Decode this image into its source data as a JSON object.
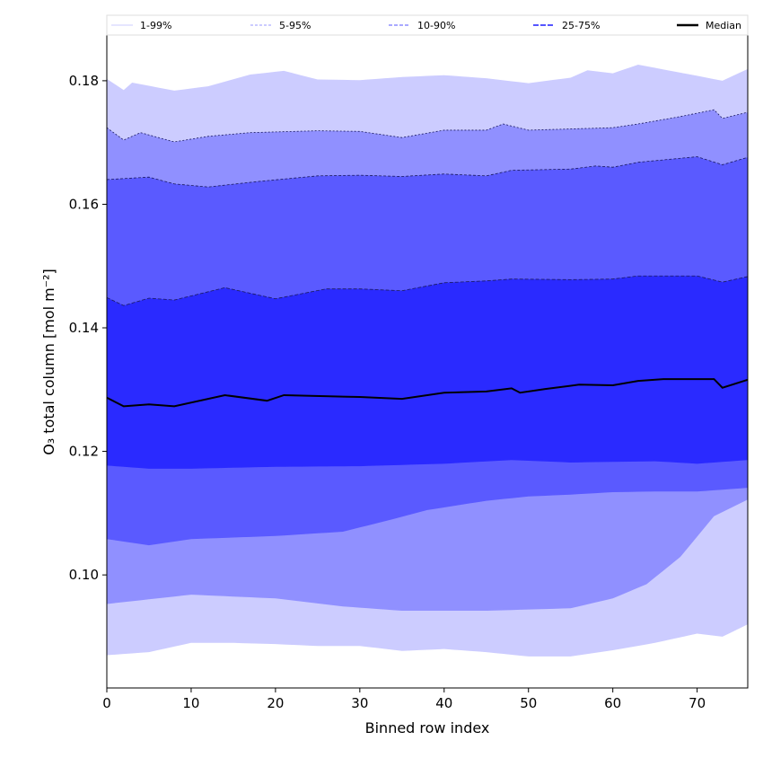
{
  "chart_data": {
    "type": "area",
    "title": "",
    "xlabel": "Binned row index",
    "ylabel": "O₃ total column [mol m⁻²]",
    "xlim": [
      0,
      76
    ],
    "ylim": [
      0.0817,
      0.1874
    ],
    "xticks": [
      0,
      10,
      20,
      30,
      40,
      50,
      60,
      70
    ],
    "xtick_labels": [
      "0",
      "10",
      "20",
      "30",
      "40",
      "50",
      "60",
      "70"
    ],
    "yticks": [
      0.1,
      0.12,
      0.14,
      0.16,
      0.18
    ],
    "ytick_labels": [
      "0.10",
      "0.12",
      "0.14",
      "0.16",
      "0.18"
    ],
    "grid": false,
    "legend_position": "top, above plot",
    "legend": [
      "1-99%",
      "5-95%",
      "10-90%",
      "25-75%",
      "Median"
    ],
    "bands": [
      {
        "name": "1-99%",
        "lower": "p1",
        "upper": "p99",
        "color": "#ccccff"
      },
      {
        "name": "5-95%",
        "lower": "p5",
        "upper": "p95",
        "color": "#9090ff"
      },
      {
        "name": "10-90%",
        "lower": "p10",
        "upper": "p90",
        "color": "#5a5aff"
      },
      {
        "name": "25-75%",
        "lower": "p25",
        "upper": "p75",
        "color": "#2a2aff"
      }
    ],
    "median_color": "#000000",
    "series": {
      "p1": {
        "x": [
          0,
          5,
          10,
          15,
          20,
          25,
          30,
          35,
          40,
          45,
          50,
          55,
          60,
          65,
          70,
          73,
          76
        ],
        "y": [
          0.087,
          0.0875,
          0.089,
          0.089,
          0.0888,
          0.0885,
          0.0885,
          0.0877,
          0.088,
          0.0875,
          0.0868,
          0.0868,
          0.0878,
          0.089,
          0.0905,
          0.09,
          0.092
        ]
      },
      "p5": {
        "x": [
          0,
          10,
          20,
          28,
          35,
          45,
          55,
          60,
          64,
          68,
          72,
          76
        ],
        "y": [
          0.0953,
          0.0968,
          0.0962,
          0.0949,
          0.0942,
          0.0942,
          0.0946,
          0.0962,
          0.0985,
          0.1029,
          0.1095,
          0.1122
        ]
      },
      "p10": {
        "x": [
          0,
          5,
          10,
          20,
          28,
          33,
          38,
          45,
          50,
          55,
          60,
          65,
          70,
          76
        ],
        "y": [
          0.1058,
          0.1048,
          0.1058,
          0.1063,
          0.107,
          0.1087,
          0.1105,
          0.112,
          0.1127,
          0.113,
          0.1134,
          0.1135,
          0.1135,
          0.1141
        ]
      },
      "p25": {
        "x": [
          0,
          5,
          10,
          20,
          30,
          40,
          48,
          55,
          65,
          70,
          76
        ],
        "y": [
          0.1177,
          0.1172,
          0.1172,
          0.1175,
          0.1176,
          0.118,
          0.1186,
          0.1182,
          0.1184,
          0.118,
          0.1186
        ]
      },
      "median": {
        "x": [
          0,
          2,
          5,
          8,
          14,
          19,
          21,
          30,
          35,
          40,
          45,
          48,
          49,
          52,
          56,
          60,
          63,
          66,
          72,
          73,
          76
        ],
        "y": [
          0.1287,
          0.1273,
          0.1276,
          0.1273,
          0.1291,
          0.1282,
          0.1291,
          0.1288,
          0.1285,
          0.1295,
          0.1297,
          0.1302,
          0.1295,
          0.1301,
          0.1308,
          0.1307,
          0.1314,
          0.1317,
          0.1317,
          0.1303,
          0.1316
        ]
      },
      "p75": {
        "x": [
          0,
          2,
          5,
          8,
          14,
          20,
          26,
          30,
          35,
          40,
          45,
          48,
          55,
          60,
          63,
          70,
          73,
          76
        ],
        "y": [
          0.1449,
          0.1436,
          0.1448,
          0.1445,
          0.1465,
          0.1447,
          0.1463,
          0.1463,
          0.146,
          0.1473,
          0.1476,
          0.1479,
          0.1478,
          0.1479,
          0.1484,
          0.1484,
          0.1474,
          0.1483
        ]
      },
      "p90": {
        "x": [
          0,
          5,
          8,
          12,
          18,
          25,
          30,
          35,
          40,
          45,
          48,
          55,
          58,
          60,
          63,
          70,
          73,
          76
        ],
        "y": [
          0.164,
          0.1644,
          0.1633,
          0.1628,
          0.1637,
          0.1646,
          0.1647,
          0.1645,
          0.1649,
          0.1646,
          0.1655,
          0.1657,
          0.1662,
          0.166,
          0.1668,
          0.1677,
          0.1664,
          0.1676
        ]
      },
      "p95": {
        "x": [
          0,
          2,
          4,
          8,
          12,
          17,
          25,
          30,
          35,
          40,
          45,
          47,
          50,
          55,
          60,
          63,
          68,
          72,
          73,
          76
        ],
        "y": [
          0.1724,
          0.1704,
          0.1716,
          0.1701,
          0.171,
          0.1716,
          0.1719,
          0.1718,
          0.1708,
          0.172,
          0.172,
          0.173,
          0.172,
          0.1722,
          0.1724,
          0.173,
          0.1742,
          0.1753,
          0.1739,
          0.1749
        ]
      },
      "p99": {
        "x": [
          0,
          2,
          3,
          8,
          12,
          17,
          21,
          25,
          30,
          35,
          40,
          45,
          50,
          55,
          57,
          60,
          63,
          70,
          73,
          76
        ],
        "y": [
          0.1803,
          0.1785,
          0.1797,
          0.1784,
          0.1791,
          0.181,
          0.1816,
          0.1802,
          0.1801,
          0.1806,
          0.1809,
          0.1804,
          0.1796,
          0.1805,
          0.1817,
          0.1812,
          0.1826,
          0.1808,
          0.18,
          0.1819
        ]
      }
    }
  }
}
